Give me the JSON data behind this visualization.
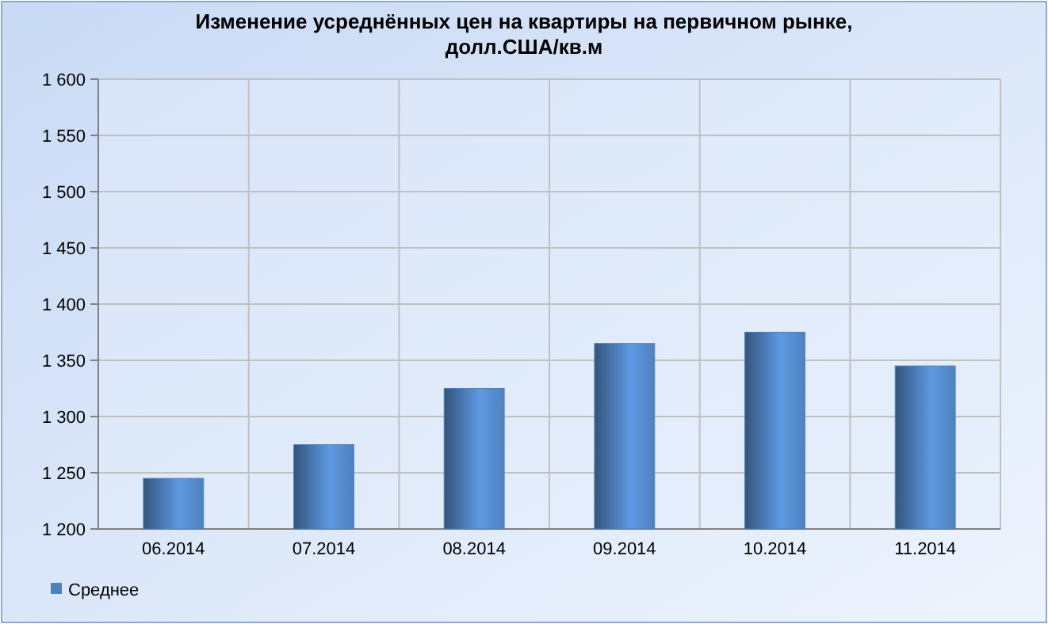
{
  "chart_data": {
    "type": "bar",
    "title": "Изменение усреднённых цен на квартиры на первичном рынке,\nдолл.США/кв.м",
    "categories": [
      "06.2014",
      "07.2014",
      "08.2014",
      "09.2014",
      "10.2014",
      "11.2014"
    ],
    "series": [
      {
        "name": "Среднее",
        "color": "#4f81bd",
        "values": [
          1245,
          1275,
          1325,
          1365,
          1375,
          1345
        ]
      }
    ],
    "ylim": [
      1200,
      1600
    ],
    "yticks": [
      {
        "value": 1200,
        "label": "1 200"
      },
      {
        "value": 1250,
        "label": "1 250"
      },
      {
        "value": 1300,
        "label": "1 300"
      },
      {
        "value": 1350,
        "label": "1 350"
      },
      {
        "value": 1400,
        "label": "1 400"
      },
      {
        "value": 1450,
        "label": "1 450"
      },
      {
        "value": 1500,
        "label": "1 500"
      },
      {
        "value": 1550,
        "label": "1 550"
      },
      {
        "value": 1600,
        "label": "1 600"
      }
    ],
    "grid": true,
    "legend": "bottom left"
  }
}
